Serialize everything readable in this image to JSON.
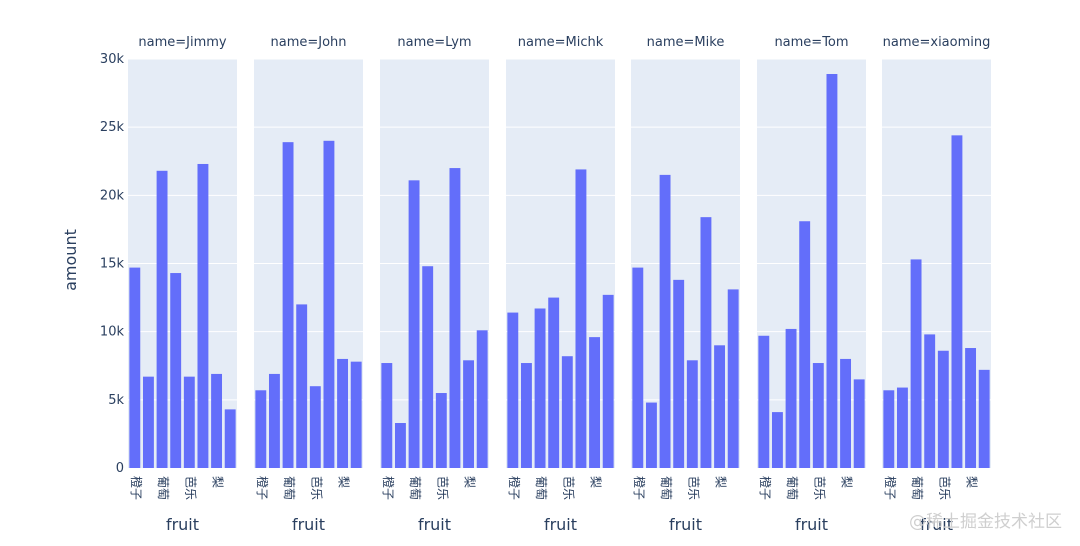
{
  "chart_data": {
    "type": "bar",
    "ylabel": "amount",
    "xlabel": "fruit",
    "ylim": [
      0,
      30000
    ],
    "yticks": [
      0,
      5000,
      10000,
      15000,
      20000,
      25000,
      30000
    ],
    "ytick_labels": [
      "0",
      "5k",
      "10k",
      "15k",
      "20k",
      "25k",
      "30k"
    ],
    "xtick_labels": [
      "橙子",
      "葡萄",
      "芭乐",
      "梨"
    ],
    "bar_color": "#636efa",
    "plot_bg": "#e5ecf6",
    "facets": [
      {
        "title": "name=Jimmy",
        "values": [
          14700,
          6700,
          21800,
          14300,
          6700,
          22300,
          6900,
          4300
        ]
      },
      {
        "title": "name=John",
        "values": [
          5700,
          6900,
          23900,
          12000,
          6000,
          24000,
          8000,
          7800
        ]
      },
      {
        "title": "name=Lym",
        "values": [
          7700,
          3300,
          21100,
          14800,
          5500,
          22000,
          7900,
          10100
        ]
      },
      {
        "title": "name=Michk",
        "values": [
          11400,
          7700,
          11700,
          12500,
          8200,
          21900,
          9600,
          12700
        ]
      },
      {
        "title": "name=Mike",
        "values": [
          14700,
          4800,
          21500,
          13800,
          7900,
          18400,
          9000,
          13100
        ]
      },
      {
        "title": "name=Tom",
        "values": [
          9700,
          4100,
          10200,
          18100,
          7700,
          28900,
          8000,
          6500
        ]
      },
      {
        "title": "name=xiaoming",
        "values": [
          5700,
          5900,
          15300,
          9800,
          8600,
          24400,
          8800,
          7200
        ]
      }
    ]
  },
  "watermark": "@稀土掘金技术社区"
}
